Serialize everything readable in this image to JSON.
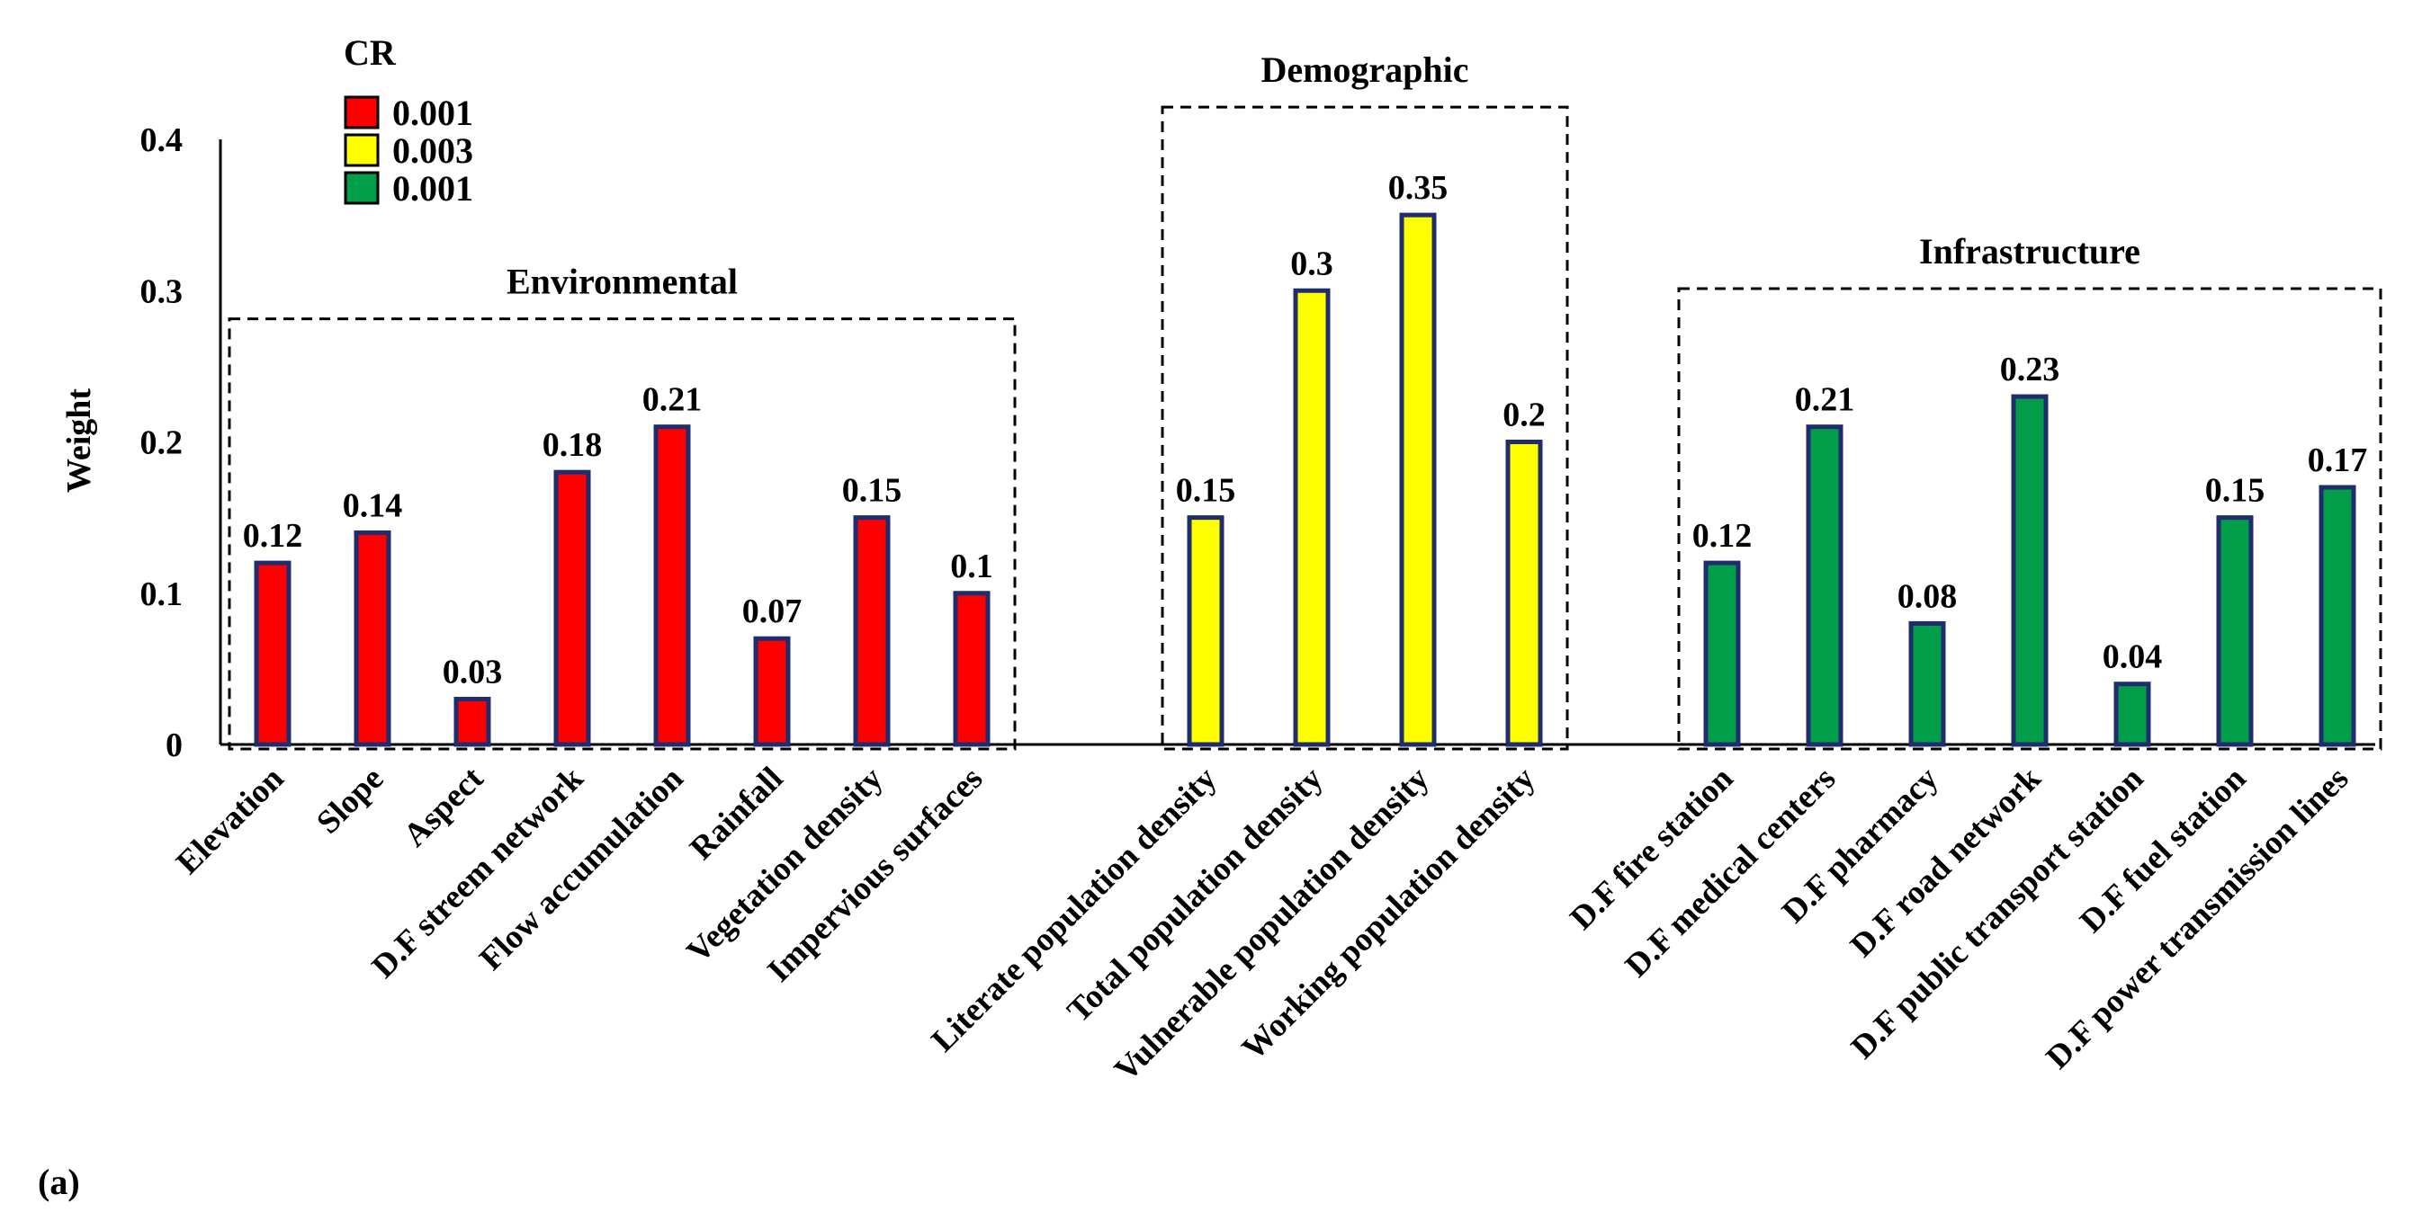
{
  "chart_data": {
    "type": "bar",
    "title": "",
    "panel_label": "(a)",
    "xlabel": "",
    "ylabel": "Weight",
    "ylim": [
      0,
      0.4
    ],
    "yticks": [
      "0",
      "0.1",
      "0.2",
      "0.3",
      "0.4"
    ],
    "legend": {
      "title": "CR",
      "position": "top-left",
      "entries": [
        {
          "label": "0.001",
          "color": "#ff0000"
        },
        {
          "label": "0.003",
          "color": "#ffff00"
        },
        {
          "label": "0.001",
          "color": "#009e49"
        }
      ]
    },
    "bar_edge_color": "#1f2d6e",
    "groups": [
      {
        "name": "Environmental",
        "color": "#ff0000",
        "categories": [
          "Elevation",
          "Slope",
          "Aspect",
          "D.F streem network",
          "Flow accumulation",
          "Rainfall",
          "Vegetation density",
          "Impervious surfaces"
        ],
        "values": [
          0.12,
          0.14,
          0.03,
          0.18,
          0.21,
          0.07,
          0.15,
          0.1
        ],
        "value_labels": [
          "0.12",
          "0.14",
          "0.03",
          "0.18",
          "0.21",
          "0.07",
          "0.15",
          "0.1"
        ]
      },
      {
        "name": "Demographic",
        "color": "#ffff00",
        "categories": [
          "Literate population density",
          "Total population density",
          "Vulnerable population density",
          "Working population density"
        ],
        "values": [
          0.15,
          0.3,
          0.35,
          0.2
        ],
        "value_labels": [
          "0.15",
          "0.3",
          "0.35",
          "0.2"
        ]
      },
      {
        "name": "Infrastructure",
        "color": "#009e49",
        "categories": [
          "D.F fire station",
          "D.F medical centers",
          "D.F pharmacy",
          "D.F road network",
          "D.F public transport station",
          "D.F fuel station",
          "D.F power transmission lines"
        ],
        "values": [
          0.12,
          0.21,
          0.08,
          0.23,
          0.04,
          0.15,
          0.17
        ],
        "value_labels": [
          "0.12",
          "0.21",
          "0.08",
          "0.23",
          "0.04",
          "0.15",
          "0.17"
        ]
      }
    ]
  }
}
